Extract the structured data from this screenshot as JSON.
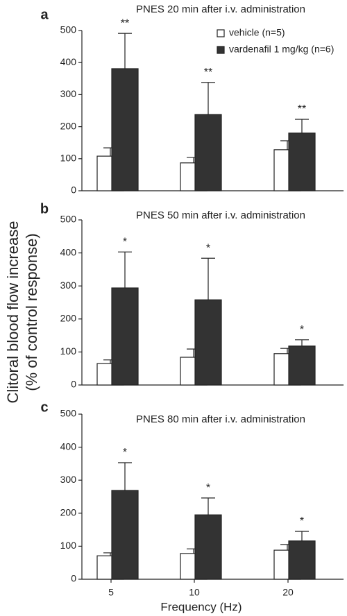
{
  "chart_data": [
    {
      "type": "bar",
      "panel": "a",
      "title": "PNES 20 min after i.v. administration",
      "categories": [
        null,
        null,
        null
      ],
      "ylim": [
        0,
        500
      ],
      "yticks": [
        0,
        100,
        200,
        300,
        400,
        500
      ],
      "series": [
        {
          "name": "vehicle (n=5)",
          "color": "#ffffff",
          "values": [
            108,
            87,
            128
          ],
          "errors": [
            26,
            17,
            28
          ]
        },
        {
          "name": "vardenafil 1 mg/kg (n=6)",
          "color": "#333333",
          "values": [
            381,
            238,
            180
          ],
          "errors": [
            110,
            100,
            43
          ],
          "significance": [
            "**",
            "**",
            "**"
          ]
        }
      ]
    },
    {
      "type": "bar",
      "panel": "b",
      "title": "PNES 50 min after i.v. administration",
      "ylabel": [
        "Clitoral blood flow  increase",
        "(% of control response)"
      ],
      "categories": [
        null,
        null,
        null
      ],
      "ylim": [
        0,
        500
      ],
      "yticks": [
        0,
        100,
        200,
        300,
        400,
        500
      ],
      "series": [
        {
          "color": "#ffffff",
          "values": [
            65,
            84,
            95
          ],
          "errors": [
            11,
            25,
            16
          ]
        },
        {
          "color": "#333333",
          "values": [
            294,
            258,
            118
          ],
          "errors": [
            109,
            126,
            19
          ],
          "significance": [
            "*",
            "*",
            "*"
          ]
        }
      ]
    },
    {
      "type": "bar",
      "panel": "c",
      "title": "PNES 80 min after i.v. administration",
      "xlabel": "Frequency (Hz)",
      "categories": [
        "5",
        "10",
        "20"
      ],
      "ylim": [
        0,
        500
      ],
      "yticks": [
        0,
        100,
        200,
        300,
        400,
        500
      ],
      "series": [
        {
          "color": "#ffffff",
          "values": [
            71,
            78,
            88
          ],
          "errors": [
            9,
            14,
            17
          ]
        },
        {
          "color": "#333333",
          "values": [
            269,
            195,
            116
          ],
          "errors": [
            84,
            51,
            29
          ],
          "significance": [
            "*",
            "*",
            "*"
          ]
        }
      ]
    }
  ]
}
